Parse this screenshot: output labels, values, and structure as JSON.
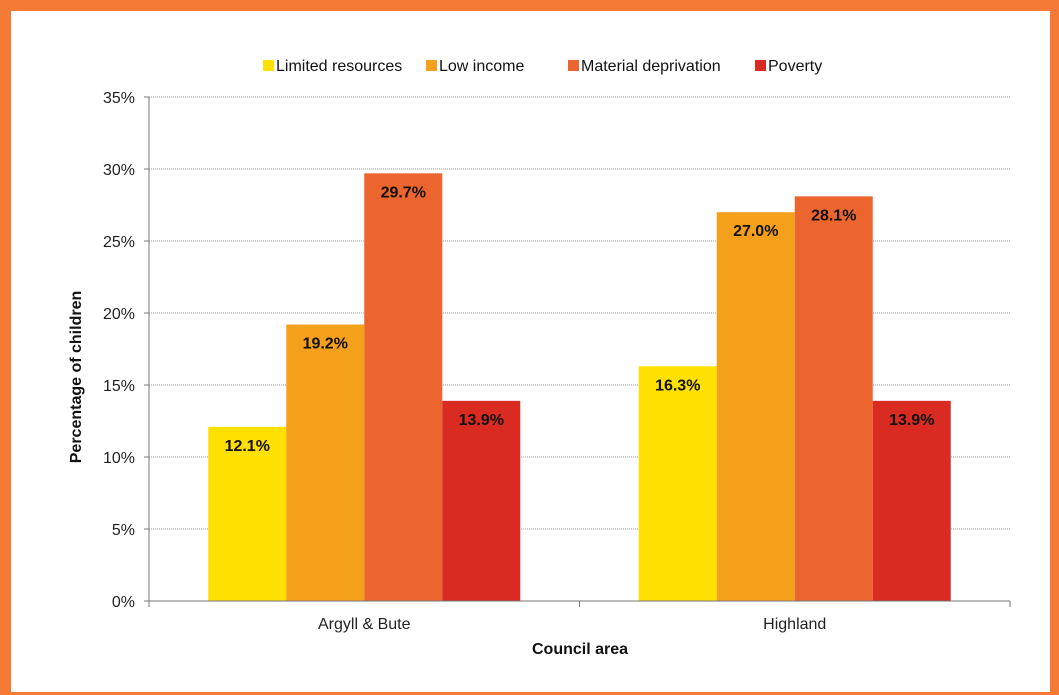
{
  "chart_data": {
    "type": "bar",
    "categories": [
      "Argyll & Bute",
      "Highland"
    ],
    "series": [
      {
        "name": "Limited resources",
        "color": "#ffe000",
        "values": [
          12.1,
          16.3
        ],
        "labels": [
          "12.1%",
          "16.3%"
        ]
      },
      {
        "name": "Low income",
        "color": "#f5a01a",
        "values": [
          19.2,
          27.0
        ],
        "labels": [
          "19.2%",
          "27.0%"
        ]
      },
      {
        "name": "Material deprivation",
        "color": "#ec652e",
        "values": [
          29.7,
          28.1
        ],
        "labels": [
          "29.7%",
          "28.1%"
        ]
      },
      {
        "name": "Poverty",
        "color": "#d92b22",
        "values": [
          13.9,
          13.9
        ],
        "labels": [
          "13.9%",
          "13.9%"
        ]
      }
    ],
    "xlabel": "Council area",
    "ylabel": "Percentage of children",
    "ylim": [
      0,
      35
    ],
    "yticks": [
      "0%",
      "5%",
      "10%",
      "15%",
      "20%",
      "25%",
      "30%",
      "35%"
    ],
    "grid": true,
    "legend": "top"
  }
}
